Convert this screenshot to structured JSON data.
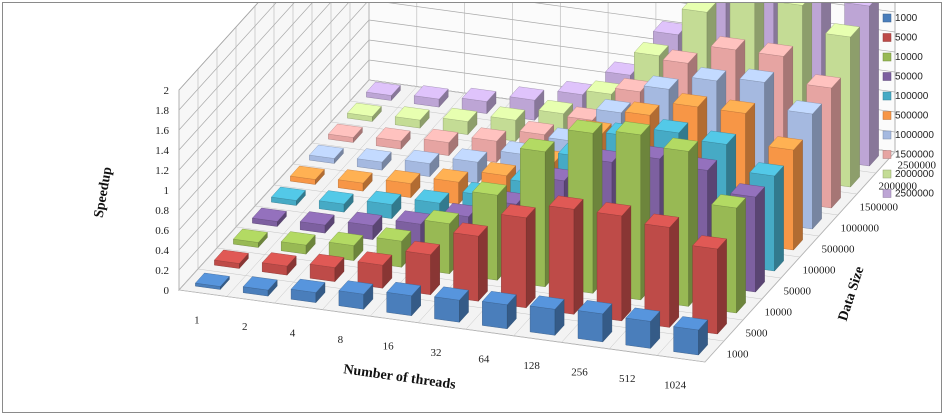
{
  "chart_data": {
    "type": "bar",
    "subtype": "3d-column",
    "title": "",
    "xlabel": "Number of threads",
    "ylabel": "Speedup",
    "zlabel": "Data Size",
    "ylim": [
      0,
      2
    ],
    "yticks": [
      "0",
      "0.2",
      "0.4",
      "0.6",
      "0.8",
      "1",
      "1.2",
      "1.4",
      "1.6",
      "1.8",
      "2"
    ],
    "categories": [
      "1",
      "2",
      "4",
      "8",
      "16",
      "32",
      "64",
      "128",
      "256",
      "512",
      "1024"
    ],
    "grid": true,
    "legend_position": "right",
    "series": [
      {
        "name": "1000",
        "color": "#4a7ebb",
        "values": [
          0.03,
          0.06,
          0.1,
          0.15,
          0.2,
          0.22,
          0.24,
          0.26,
          0.28,
          0.27,
          0.25
        ]
      },
      {
        "name": "5000",
        "color": "#be4b48",
        "values": [
          0.05,
          0.09,
          0.14,
          0.23,
          0.4,
          0.65,
          0.9,
          1.05,
          1.05,
          1.0,
          0.85
        ]
      },
      {
        "name": "10000",
        "color": "#98b954",
        "values": [
          0.05,
          0.09,
          0.15,
          0.26,
          0.5,
          0.85,
          1.35,
          1.6,
          1.65,
          1.55,
          1.05
        ]
      },
      {
        "name": "50000",
        "color": "#7d60a0",
        "values": [
          0.05,
          0.08,
          0.14,
          0.22,
          0.36,
          0.55,
          0.85,
          1.1,
          1.2,
          1.15,
          0.95
        ]
      },
      {
        "name": "100000",
        "color": "#46aac5",
        "values": [
          0.05,
          0.08,
          0.14,
          0.22,
          0.36,
          0.55,
          0.88,
          1.15,
          1.25,
          1.2,
          0.95
        ]
      },
      {
        "name": "500000",
        "color": "#f79646",
        "values": [
          0.05,
          0.08,
          0.14,
          0.22,
          0.35,
          0.55,
          0.9,
          1.15,
          1.3,
          1.3,
          1.0
        ]
      },
      {
        "name": "1000000",
        "color": "#a5b9e0",
        "values": [
          0.05,
          0.08,
          0.13,
          0.21,
          0.35,
          0.55,
          0.9,
          1.2,
          1.35,
          1.4,
          1.15
        ]
      },
      {
        "name": "1500000",
        "color": "#e6a4a2",
        "values": [
          0.05,
          0.08,
          0.13,
          0.21,
          0.34,
          0.55,
          0.9,
          1.25,
          1.45,
          1.45,
          1.2
        ]
      },
      {
        "name": "2000000",
        "color": "#c4dc95",
        "values": [
          0.05,
          0.08,
          0.13,
          0.21,
          0.34,
          0.6,
          1.05,
          1.55,
          1.75,
          1.75,
          1.5
        ]
      },
      {
        "name": "2500000",
        "color": "#bda5d5",
        "values": [
          0.05,
          0.08,
          0.12,
          0.2,
          0.32,
          0.58,
          1.05,
          1.7,
          1.95,
          1.9,
          1.6
        ]
      }
    ]
  }
}
